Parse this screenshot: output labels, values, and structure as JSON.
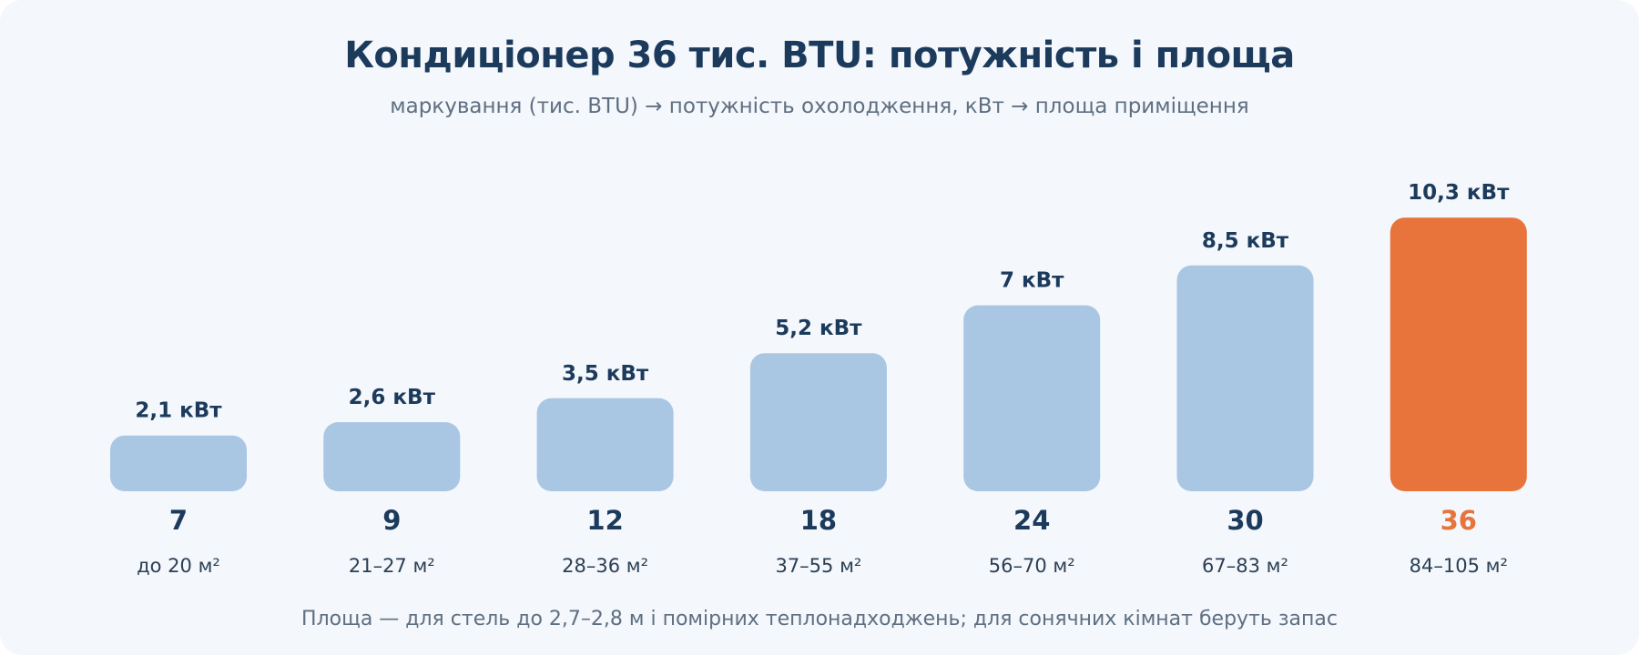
{
  "chart_data": {
    "type": "bar",
    "title": "Кондиціонер 36 тис. BTU: потужність і площа",
    "subtitle": "маркування (тис. BTU) → потужність охолодження, кВт → площа приміщення",
    "categories": [
      "7",
      "9",
      "12",
      "18",
      "24",
      "30",
      "36"
    ],
    "values": [
      2.1,
      2.6,
      3.5,
      5.2,
      7,
      8.5,
      10.3
    ],
    "value_labels": [
      "2,1 кВт",
      "2,6 кВт",
      "3,5 кВт",
      "5,2 кВт",
      "7 кВт",
      "8,5 кВт",
      "10,3 кВт"
    ],
    "area_labels": [
      "до 20 м²",
      "21–27 м²",
      "28–36 м²",
      "37–55 м²",
      "56–70 м²",
      "67–83 м²",
      "84–105 м²"
    ],
    "highlight_index": 6,
    "ylim": [
      0,
      10.3
    ],
    "grid": false,
    "footnote": "Площа — для стель до 2,7–2,8 м і помірних теплонадходжень; для сонячних кімнат беруть запас"
  },
  "colors": {
    "bar": "#a9c6e3",
    "highlight": "#e8743b",
    "text": "#1c3b5c",
    "muted": "#5f6f82",
    "background": "#f4f7fb"
  }
}
